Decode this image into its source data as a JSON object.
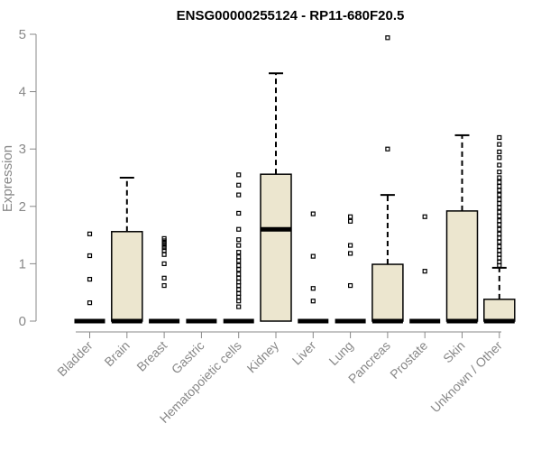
{
  "chart_data": {
    "type": "box",
    "title": "ENSG00000255124 - RP11-680F20.5",
    "ylabel": "Expression",
    "ylim": [
      0,
      5
    ],
    "yticks": [
      "0",
      "1",
      "2",
      "3",
      "4",
      "5"
    ],
    "box_fill": "#ECE6CF",
    "categories": [
      {
        "name": "Bladder",
        "q1": 0,
        "median": 0,
        "q3": 0,
        "lower_whisker": 0,
        "upper_whisker": 0,
        "outliers": [
          0.32,
          0.73,
          1.14,
          1.52
        ]
      },
      {
        "name": "Brain",
        "q1": 0,
        "median": 0,
        "q3": 1.56,
        "lower_whisker": 0,
        "upper_whisker": 2.5,
        "outliers": []
      },
      {
        "name": "Breast",
        "q1": 0,
        "median": 0,
        "q3": 0,
        "lower_whisker": 0,
        "upper_whisker": 0,
        "outliers": [
          0.62,
          0.75,
          1.0,
          1.16,
          1.23,
          1.28,
          1.32,
          1.36,
          1.4,
          1.44
        ]
      },
      {
        "name": "Gastric",
        "q1": 0,
        "median": 0,
        "q3": 0,
        "lower_whisker": 0,
        "upper_whisker": 0,
        "outliers": []
      },
      {
        "name": "Hematopoietic cells",
        "q1": 0,
        "median": 0,
        "q3": 0,
        "lower_whisker": 0,
        "upper_whisker": 0,
        "outliers": [
          0.25,
          0.35,
          0.42,
          0.48,
          0.55,
          0.62,
          0.68,
          0.75,
          0.82,
          0.9,
          0.97,
          1.05,
          1.12,
          1.2,
          1.32,
          1.42,
          1.6,
          1.88,
          2.2,
          2.37,
          2.55
        ]
      },
      {
        "name": "Kidney",
        "q1": 0,
        "median": 1.6,
        "q3": 2.56,
        "lower_whisker": 0,
        "upper_whisker": 4.32,
        "outliers": []
      },
      {
        "name": "Liver",
        "q1": 0,
        "median": 0,
        "q3": 0,
        "lower_whisker": 0,
        "upper_whisker": 0,
        "outliers": [
          0.35,
          0.57,
          1.13,
          1.87
        ]
      },
      {
        "name": "Lung",
        "q1": 0,
        "median": 0,
        "q3": 0,
        "lower_whisker": 0,
        "upper_whisker": 0,
        "outliers": [
          0.62,
          1.18,
          1.32,
          1.74,
          1.82
        ]
      },
      {
        "name": "Pancreas",
        "q1": 0,
        "median": 0,
        "q3": 0.99,
        "lower_whisker": 0,
        "upper_whisker": 2.2,
        "outliers": [
          3.0,
          4.94
        ]
      },
      {
        "name": "Prostate",
        "q1": 0,
        "median": 0,
        "q3": 0,
        "lower_whisker": 0,
        "upper_whisker": 0,
        "outliers": [
          0.87,
          1.82
        ]
      },
      {
        "name": "Skin",
        "q1": 0,
        "median": 0,
        "q3": 1.92,
        "lower_whisker": 0,
        "upper_whisker": 3.24,
        "outliers": []
      },
      {
        "name": "Unknown / Other",
        "q1": 0,
        "median": 0,
        "q3": 0.38,
        "lower_whisker": 0,
        "upper_whisker": 0.93,
        "outliers": [
          0.97,
          1.03,
          1.1,
          1.16,
          1.23,
          1.3,
          1.38,
          1.45,
          1.52,
          1.6,
          1.68,
          1.75,
          1.83,
          1.9,
          1.98,
          2.05,
          2.12,
          2.2,
          2.28,
          2.35,
          2.42,
          2.5,
          2.6,
          2.72,
          2.85,
          2.95,
          3.08,
          3.2
        ]
      }
    ]
  }
}
